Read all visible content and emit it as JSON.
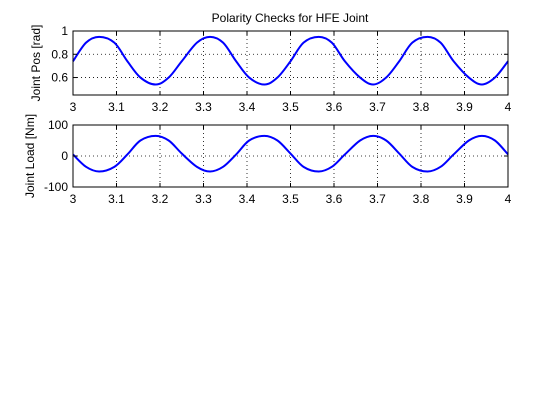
{
  "figure": {
    "background": "#ffffff",
    "line_color": "#0000ff"
  },
  "chart_data": [
    {
      "type": "line",
      "title": "Polarity Checks for HFE Joint",
      "xlabel": "",
      "ylabel": "Joint Pos [rad]",
      "xlim": [
        3,
        4
      ],
      "ylim": [
        0.45,
        1.0
      ],
      "xticks": [
        3,
        3.1,
        3.2,
        3.3,
        3.4,
        3.5,
        3.6,
        3.7,
        3.8,
        3.9,
        4
      ],
      "xtick_labels": [
        "3",
        "3.1",
        "3.2",
        "3.3",
        "3.4",
        "3.5",
        "3.6",
        "3.7",
        "3.8",
        "3.9",
        "4"
      ],
      "yticks": [
        0.6,
        0.8,
        1
      ],
      "ytick_labels": [
        "0.6",
        "0.8",
        "1"
      ],
      "grid": true,
      "series": [
        {
          "x": [
            3.0,
            3.03,
            3.06,
            3.095,
            3.125,
            3.155,
            3.19,
            3.22,
            3.25,
            3.285,
            3.315,
            3.345,
            3.375,
            3.405,
            3.44,
            3.47,
            3.5,
            3.53,
            3.565,
            3.595,
            3.625,
            3.66,
            3.69,
            3.72,
            3.75,
            3.78,
            3.815,
            3.845,
            3.875,
            3.91,
            3.94,
            3.97,
            4.0
          ],
          "y": [
            0.74,
            0.9,
            0.95,
            0.9,
            0.74,
            0.6,
            0.54,
            0.6,
            0.74,
            0.9,
            0.95,
            0.9,
            0.74,
            0.6,
            0.54,
            0.6,
            0.74,
            0.9,
            0.95,
            0.9,
            0.74,
            0.6,
            0.54,
            0.6,
            0.74,
            0.9,
            0.95,
            0.9,
            0.74,
            0.6,
            0.54,
            0.6,
            0.74
          ]
        }
      ]
    },
    {
      "type": "line",
      "title": "",
      "xlabel": "",
      "ylabel": "Joint Load [Nm]",
      "xlim": [
        3,
        4
      ],
      "ylim": [
        -100,
        100
      ],
      "xticks": [
        3,
        3.1,
        3.2,
        3.3,
        3.4,
        3.5,
        3.6,
        3.7,
        3.8,
        3.9,
        4
      ],
      "xtick_labels": [
        "3",
        "3.1",
        "3.2",
        "3.3",
        "3.4",
        "3.5",
        "3.6",
        "3.7",
        "3.8",
        "3.9",
        "4"
      ],
      "yticks": [
        -100,
        0,
        100
      ],
      "ytick_labels": [
        "-100",
        "0",
        "100"
      ],
      "grid": true,
      "series": [
        {
          "x": [
            3.0,
            3.03,
            3.06,
            3.095,
            3.125,
            3.155,
            3.19,
            3.22,
            3.25,
            3.285,
            3.315,
            3.345,
            3.375,
            3.405,
            3.44,
            3.47,
            3.5,
            3.53,
            3.565,
            3.595,
            3.625,
            3.66,
            3.69,
            3.72,
            3.75,
            3.78,
            3.815,
            3.845,
            3.875,
            3.91,
            3.94,
            3.97,
            4.0
          ],
          "y": [
            5,
            -35,
            -50,
            -35,
            5,
            50,
            65,
            50,
            8,
            -35,
            -50,
            -35,
            5,
            50,
            65,
            50,
            8,
            -35,
            -50,
            -35,
            5,
            50,
            65,
            50,
            8,
            -35,
            -50,
            -35,
            5,
            50,
            65,
            50,
            5
          ]
        }
      ]
    }
  ]
}
